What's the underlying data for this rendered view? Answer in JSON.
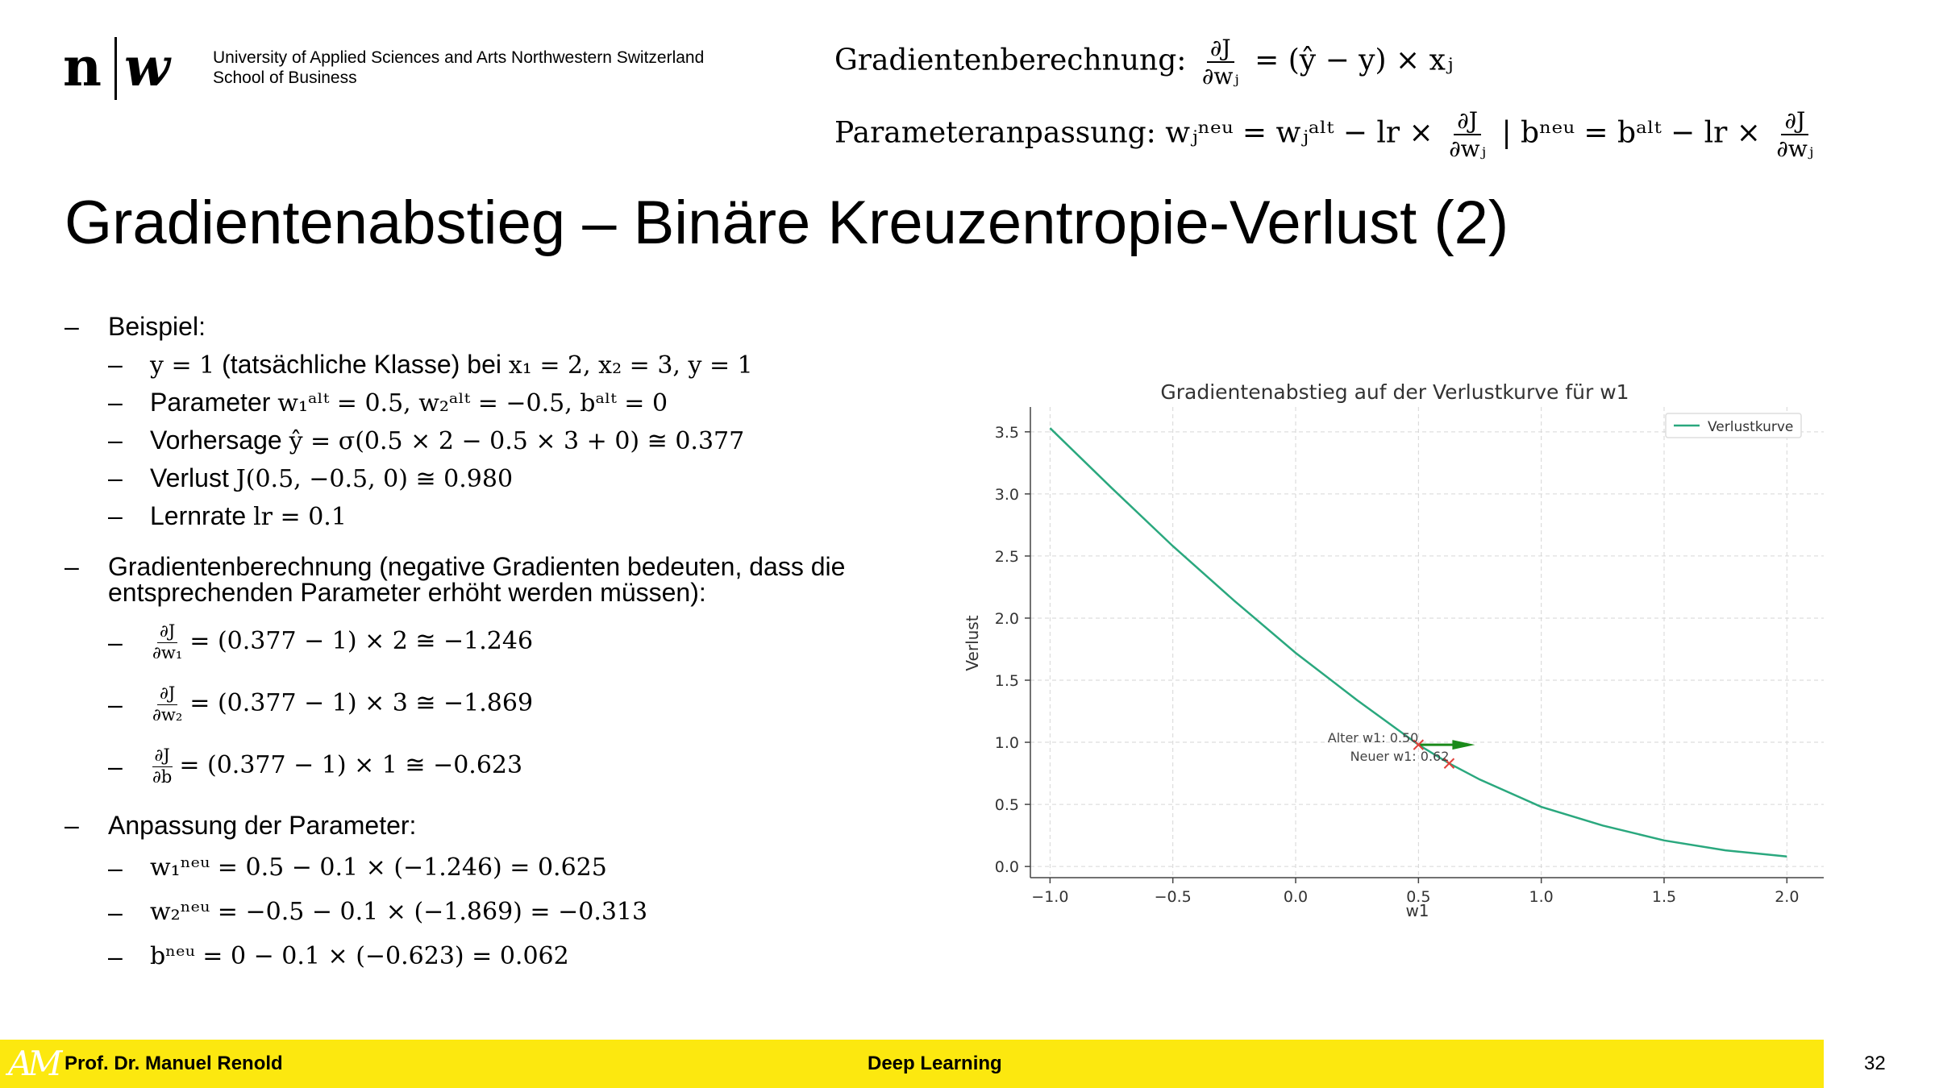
{
  "logo": {
    "mark_n": "n",
    "mark_w": "w",
    "university_line1": "University of Applied Sciences and Arts Northwestern Switzerland",
    "university_line2": "School of Business"
  },
  "formulas": {
    "gradient_label": "Gradientenberechnung:",
    "gradient_num": "∂J",
    "gradient_den": "∂wⱼ",
    "gradient_rhs": "= (ŷ − y) × xⱼ",
    "update_label": "Parameteranpassung:",
    "update_w_lhs": "wⱼⁿᵉᵘ = wⱼᵃˡᵗ − lr ×",
    "update_num1": "∂J",
    "update_den1": "∂wⱼ",
    "update_sep": "| bⁿᵉᵘ = bᵃˡᵗ − lr ×",
    "update_num2": "∂J",
    "update_den2": "∂wⱼ"
  },
  "title": "Gradientenabstieg – Binäre Kreuzentropie-Verlust (2)",
  "bullets": {
    "dash": "–",
    "beispiel": "Beispiel:",
    "b1_math": "y = 1",
    "b1_text": " (tatsächliche Klasse) bei ",
    "b1_math2": "x₁ = 2, x₂ = 3, y = 1",
    "b2_text": "Parameter ",
    "b2_math": "w₁ᵃˡᵗ = 0.5, w₂ᵃˡᵗ = −0.5, bᵃˡᵗ = 0",
    "b3_text": "Vorhersage ",
    "b3_math": "ŷ = σ(0.5 × 2 − 0.5 × 3 + 0) ≅ 0.377",
    "b4_text": "Verlust ",
    "b4_math": "J(0.5, −0.5, 0) ≅ 0.980",
    "b5_text": "Lernrate ",
    "b5_math": "lr = 0.1",
    "grad_line1": "Gradientenberechnung (negative Gradienten bedeuten, dass die",
    "grad_line2": "entsprechenden Parameter erhöht werden müssen):",
    "g1_num": "∂J",
    "g1_den": "∂w₁",
    "g1_rhs": "= (0.377 − 1) × 2 ≅ −1.246",
    "g2_num": "∂J",
    "g2_den": "∂w₂",
    "g2_rhs": "= (0.377 − 1) × 3 ≅ −1.869",
    "g3_num": "∂J",
    "g3_den": "∂b",
    "g3_rhs": "= (0.377 − 1) × 1 ≅ −0.623",
    "anpassung": "Anpassung der Parameter:",
    "a1": "w₁ⁿᵉᵘ = 0.5 − 0.1 × (−1.246) = 0.625",
    "a2": "w₂ⁿᵉᵘ = −0.5 − 0.1 × (−1.869) = −0.313",
    "a3": "bⁿᵉᵘ = 0 − 0.1 × (−0.623) = 0.062"
  },
  "chart_data": {
    "type": "line",
    "title": "Gradientenabstieg auf der Verlustkurve für w1",
    "xlabel": "w1",
    "ylabel": "Verlust",
    "xlim": [
      -1.08,
      2.15
    ],
    "ylim": [
      -0.09,
      3.7
    ],
    "xticks": [
      -1.0,
      -0.5,
      0.0,
      0.5,
      1.0,
      1.5,
      2.0
    ],
    "xtick_labels": [
      "−1.0",
      "−0.5",
      "0.0",
      "0.5",
      "1.0",
      "1.5",
      "2.0"
    ],
    "yticks": [
      0.0,
      0.5,
      1.0,
      1.5,
      2.0,
      2.5,
      3.0,
      3.5
    ],
    "ytick_labels": [
      "0.0",
      "0.5",
      "1.0",
      "1.5",
      "2.0",
      "2.5",
      "3.0",
      "3.5"
    ],
    "grid": true,
    "legend_position": "top-right",
    "series": [
      {
        "name": "Verlustkurve",
        "color": "#2aa87e",
        "x": [
          -1.0,
          -0.75,
          -0.5,
          -0.25,
          0.0,
          0.25,
          0.5,
          0.625,
          0.75,
          1.0,
          1.25,
          1.5,
          1.75,
          2.0
        ],
        "y": [
          3.53,
          3.05,
          2.58,
          2.14,
          1.72,
          1.34,
          0.98,
          0.83,
          0.7,
          0.48,
          0.33,
          0.21,
          0.13,
          0.08
        ]
      }
    ],
    "markers": [
      {
        "label": "Alter w1: 0.50",
        "x": 0.5,
        "y": 0.98,
        "color": "#e0413a"
      },
      {
        "label": "Neuer w1: 0.62",
        "x": 0.625,
        "y": 0.83,
        "color": "#e0413a"
      }
    ],
    "arrow": {
      "x_from": 0.5,
      "x_to": 0.73,
      "y": 0.98,
      "color": "#1a8a1a"
    }
  },
  "footer": {
    "logo_mark": "AM",
    "author": "Prof. Dr. Manuel Renold",
    "course": "Deep Learning"
  },
  "page_number": "32"
}
